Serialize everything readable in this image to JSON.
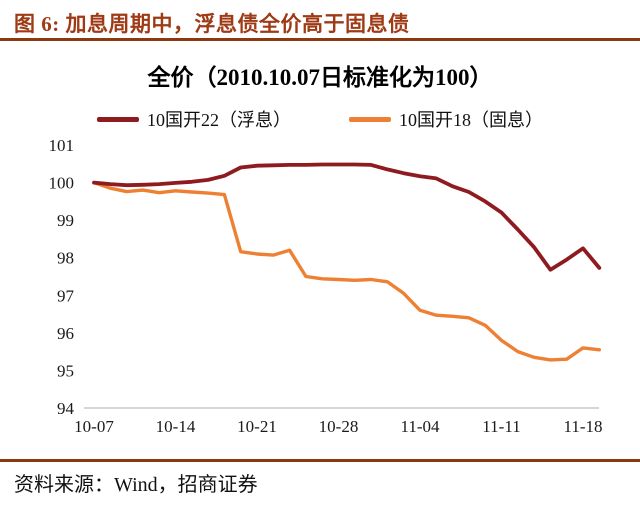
{
  "header": {
    "title": "图 6: 加息周期中，浮息债全价高于固息债"
  },
  "chart_data": {
    "type": "line",
    "title": "全价（2010.10.07日标准化为100）",
    "xlabel": "",
    "ylabel": "",
    "ylim": [
      94,
      101
    ],
    "y_ticks": [
      94,
      95,
      96,
      97,
      98,
      99,
      100,
      101
    ],
    "grid": false,
    "legend_position": "top",
    "x": [
      "10-07",
      "10-08",
      "10-11",
      "10-12",
      "10-13",
      "10-14",
      "10-15",
      "10-18",
      "10-19",
      "10-20",
      "10-21",
      "10-22",
      "10-25",
      "10-26",
      "10-27",
      "10-28",
      "10-29",
      "11-01",
      "11-02",
      "11-03",
      "11-04",
      "11-05",
      "11-08",
      "11-09",
      "11-10",
      "11-11",
      "11-12",
      "11-15",
      "11-16",
      "11-17",
      "11-18",
      "11-19"
    ],
    "x_tick_labels": [
      "10-07",
      "10-14",
      "10-21",
      "10-28",
      "11-04",
      "11-11",
      "11-18"
    ],
    "x_tick_indices": [
      0,
      5,
      10,
      15,
      20,
      25,
      30
    ],
    "series": [
      {
        "name": "10国开22（浮息）",
        "color": "#8E1B20",
        "values": [
          100.0,
          99.96,
          99.93,
          99.94,
          99.96,
          99.99,
          100.02,
          100.07,
          100.18,
          100.4,
          100.45,
          100.46,
          100.47,
          100.47,
          100.48,
          100.48,
          100.48,
          100.47,
          100.35,
          100.25,
          100.17,
          100.11,
          99.9,
          99.75,
          99.5,
          99.2,
          98.75,
          98.28,
          97.68,
          97.95,
          98.25,
          97.73
        ]
      },
      {
        "name": "10国开18（固息）",
        "color": "#ED8033",
        "values": [
          100.0,
          99.85,
          99.76,
          99.8,
          99.73,
          99.78,
          99.75,
          99.72,
          99.68,
          98.16,
          98.1,
          98.07,
          98.2,
          97.5,
          97.44,
          97.42,
          97.4,
          97.42,
          97.36,
          97.05,
          96.6,
          96.47,
          96.44,
          96.4,
          96.2,
          95.8,
          95.5,
          95.35,
          95.28,
          95.3,
          95.6,
          95.55
        ]
      }
    ]
  },
  "footer": {
    "source": "资料来源：Wind，招商证券"
  },
  "colors": {
    "accent_rule": "#8A3A10",
    "title_text": "#9E3A15",
    "axis_line": "#C9C9C9",
    "tick_text": "#1A1A1A"
  }
}
